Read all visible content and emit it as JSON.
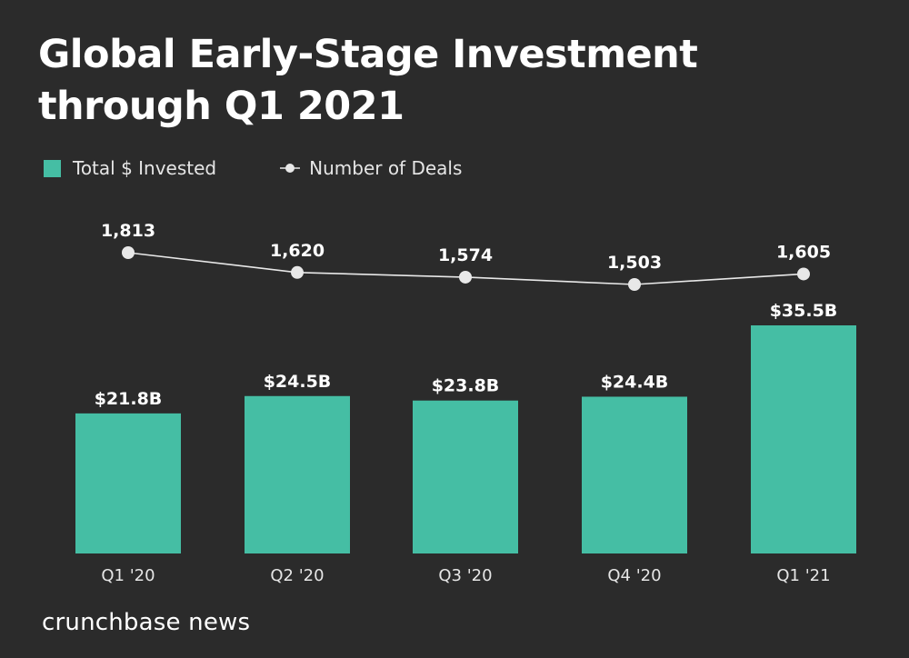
{
  "title": "Global Early-Stage Investment through Q1 2021",
  "legend": {
    "bar_label": "Total $ Invested",
    "line_label": "Number of Deals"
  },
  "footer": "crunchbase news",
  "colors": {
    "background": "#2b2b2b",
    "bar": "#45bea4",
    "line": "#e8e8e8",
    "text": "#ffffff"
  },
  "chart_data": {
    "type": "bar",
    "title": "Global Early-Stage Investment through Q1 2021",
    "categories": [
      "Q1 '20",
      "Q2 '20",
      "Q3 '20",
      "Q4 '20",
      "Q1 '21"
    ],
    "series": [
      {
        "name": "Total $ Invested",
        "type": "bar",
        "unit": "$B",
        "values": [
          21.8,
          24.5,
          23.8,
          24.4,
          35.5
        ],
        "labels": [
          "$21.8B",
          "$24.5B",
          "$23.8B",
          "$24.4B",
          "$35.5B"
        ]
      },
      {
        "name": "Number of Deals",
        "type": "line",
        "values": [
          1813,
          1620,
          1574,
          1503,
          1605
        ],
        "labels": [
          "1,813",
          "1,620",
          "1,574",
          "1,503",
          "1,605"
        ]
      }
    ],
    "legend": "top-left",
    "grid": false
  }
}
